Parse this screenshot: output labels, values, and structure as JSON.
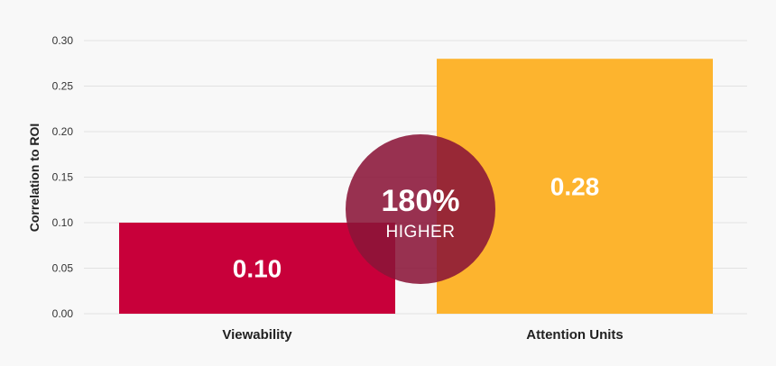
{
  "chart_data": {
    "type": "bar",
    "categories": [
      "Viewability",
      "Attention Units"
    ],
    "values": [
      0.1,
      0.28
    ],
    "value_labels": [
      "0.10",
      "0.28"
    ],
    "ylabel": "Correlation to ROI",
    "xlabel": "",
    "ylim": [
      0,
      0.3
    ],
    "yticks": [
      "0.00",
      "0.05",
      "0.10",
      "0.15",
      "0.20",
      "0.25",
      "0.30"
    ],
    "grid": true,
    "legend": "none",
    "colors": [
      "#c8003a",
      "#fdb42e"
    ],
    "annotation": {
      "percent": "180%",
      "text": "HIGHER",
      "color": "#8a1538"
    }
  }
}
